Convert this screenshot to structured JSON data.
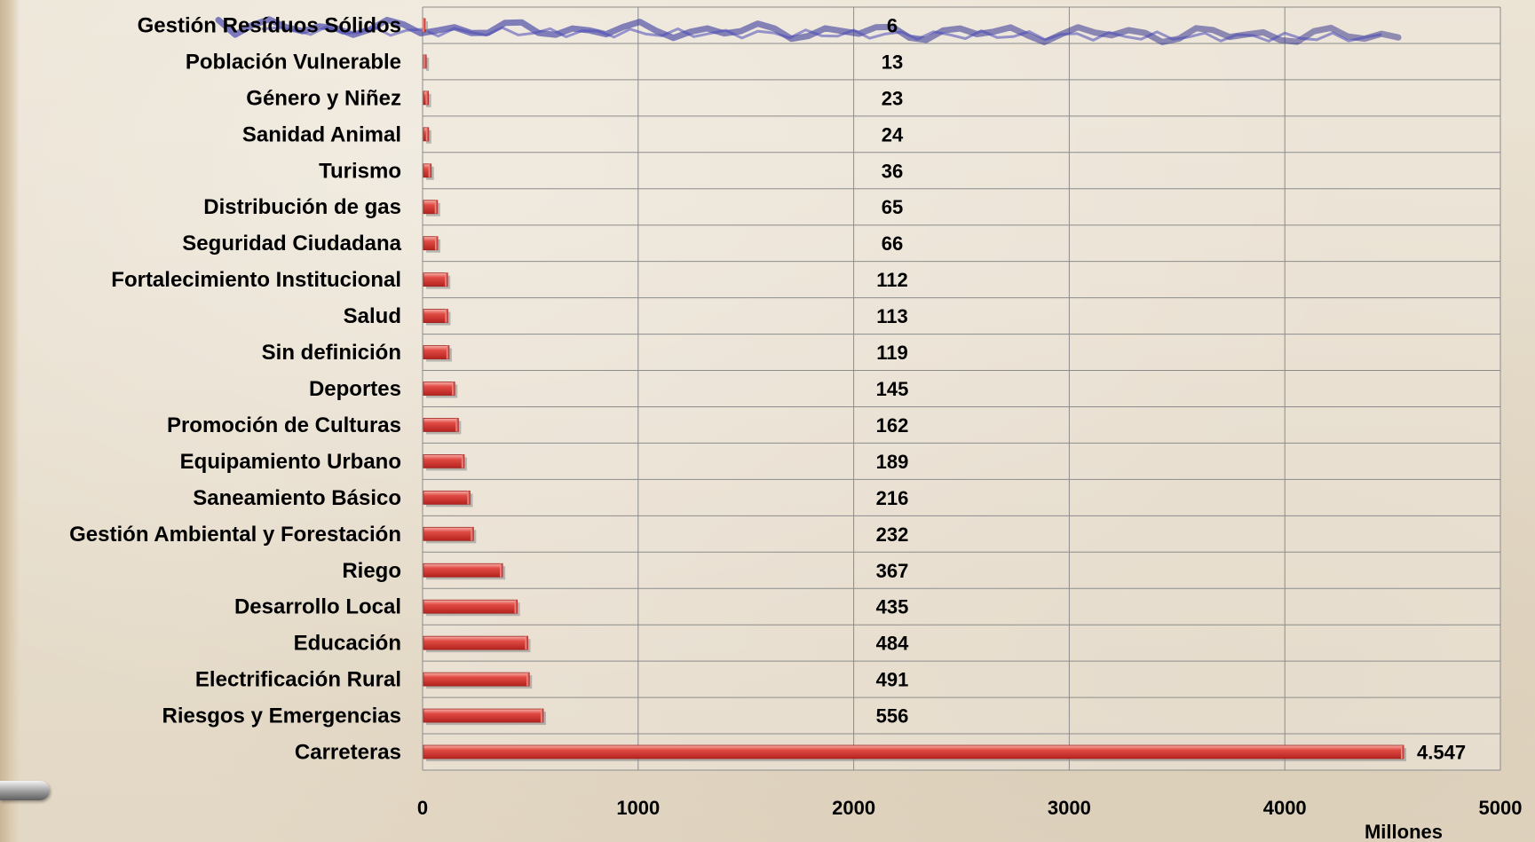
{
  "chart_data": {
    "type": "bar",
    "orientation": "horizontal",
    "title": "",
    "xlabel": "Millones",
    "ylabel": "",
    "xlim": [
      0,
      5000
    ],
    "x_ticks": [
      "0",
      "1000",
      "2000",
      "3000",
      "4000",
      "5000"
    ],
    "grid": true,
    "legend": "none",
    "categories": [
      "Gestión Resíduos Sólidos",
      "Población Vulnerable",
      "Género y Niñez",
      "Sanidad Animal",
      "Turismo",
      "Distribución de gas",
      "Seguridad Ciudadana",
      "Fortalecimiento Institucional",
      "Salud",
      "Sin definición",
      "Deportes",
      "Promoción de Culturas",
      "Equipamiento Urbano",
      "Saneamiento Básico",
      "Gestión Ambiental y Forestación",
      "Riego",
      "Desarrollo Local",
      "Educación",
      "Electrificación Rural",
      "Riesgos y Emergencias",
      "Carreteras"
    ],
    "values": [
      6,
      13,
      23,
      24,
      36,
      65,
      66,
      112,
      113,
      119,
      145,
      162,
      189,
      216,
      232,
      367,
      435,
      484,
      491,
      556,
      4547
    ],
    "value_labels": [
      "6",
      "13",
      "23",
      "24",
      "36",
      "65",
      "66",
      "112",
      "113",
      "119",
      "145",
      "162",
      "189",
      "216",
      "232",
      "367",
      "435",
      "484",
      "491",
      "556",
      "4.547"
    ],
    "bar_color": "#d9413c",
    "plot_background": "#efe8dc"
  }
}
